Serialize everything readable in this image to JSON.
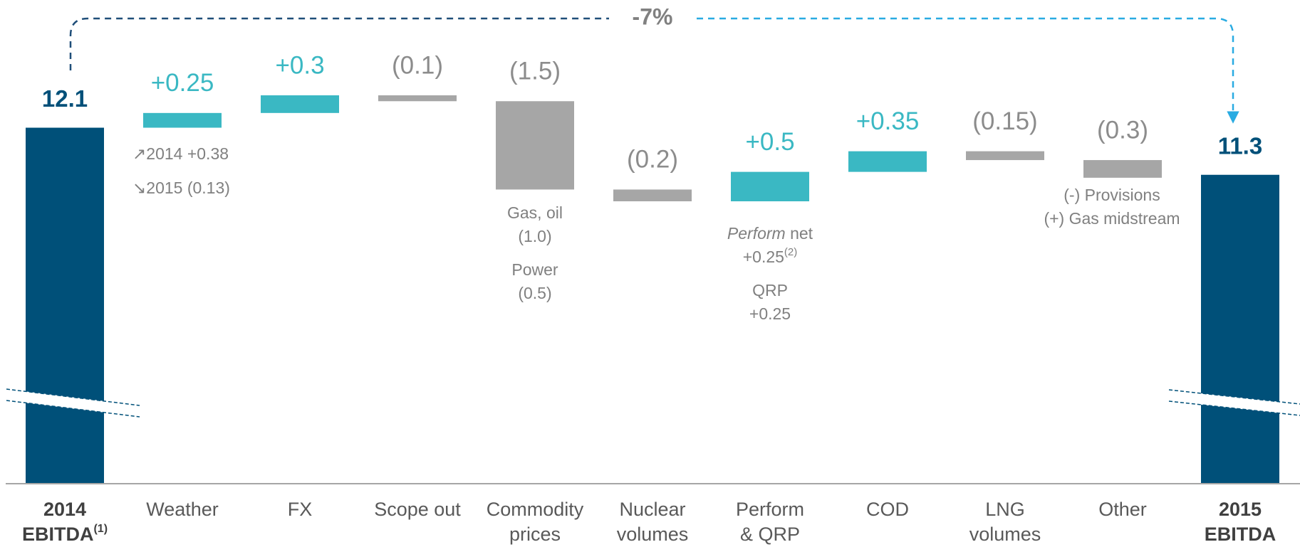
{
  "chart_data": {
    "type": "waterfall",
    "categories": [
      [
        "2014",
        "EBITDA"
      ],
      [
        "Weather"
      ],
      [
        "FX"
      ],
      [
        "Scope out"
      ],
      [
        "Commodity",
        "prices"
      ],
      [
        "Nuclear",
        "volumes"
      ],
      [
        "Perform",
        "& QRP"
      ],
      [
        "COD"
      ],
      [
        "LNG",
        "volumes"
      ],
      [
        "Other"
      ],
      [
        "2015",
        "EBITDA"
      ]
    ],
    "category_notes": [
      "(1)",
      null,
      null,
      null,
      null,
      null,
      null,
      null,
      null,
      null,
      null
    ],
    "values": [
      12.1,
      0.25,
      0.3,
      -0.1,
      -1.5,
      -0.2,
      0.5,
      0.35,
      -0.15,
      -0.3,
      11.3
    ],
    "value_labels": [
      "12.1",
      "+0.25",
      "+0.3",
      "(0.1)",
      "(1.5)",
      "(0.2)",
      "+0.5",
      "+0.35",
      "(0.15)",
      "(0.3)",
      "11.3"
    ],
    "colors": {
      "total": "#005079",
      "increase": "#3ab8c3",
      "decrease": "#a6a6a6"
    },
    "change_label": "-7%",
    "annotations": {
      "weather": [
        "↗2014 +0.38",
        "↘2015 (0.13)"
      ],
      "commodity": [
        "Gas, oil",
        "(1.0)",
        "Power",
        "(0.5)"
      ],
      "perform": {
        "italic": "Perform",
        "rest": " net",
        "value": "+0.25",
        "note": "(2)",
        "qrp": "QRP",
        "qrp_value": "+0.25"
      },
      "other": [
        "(-) Provisions",
        "(+) Gas midstream"
      ]
    }
  }
}
